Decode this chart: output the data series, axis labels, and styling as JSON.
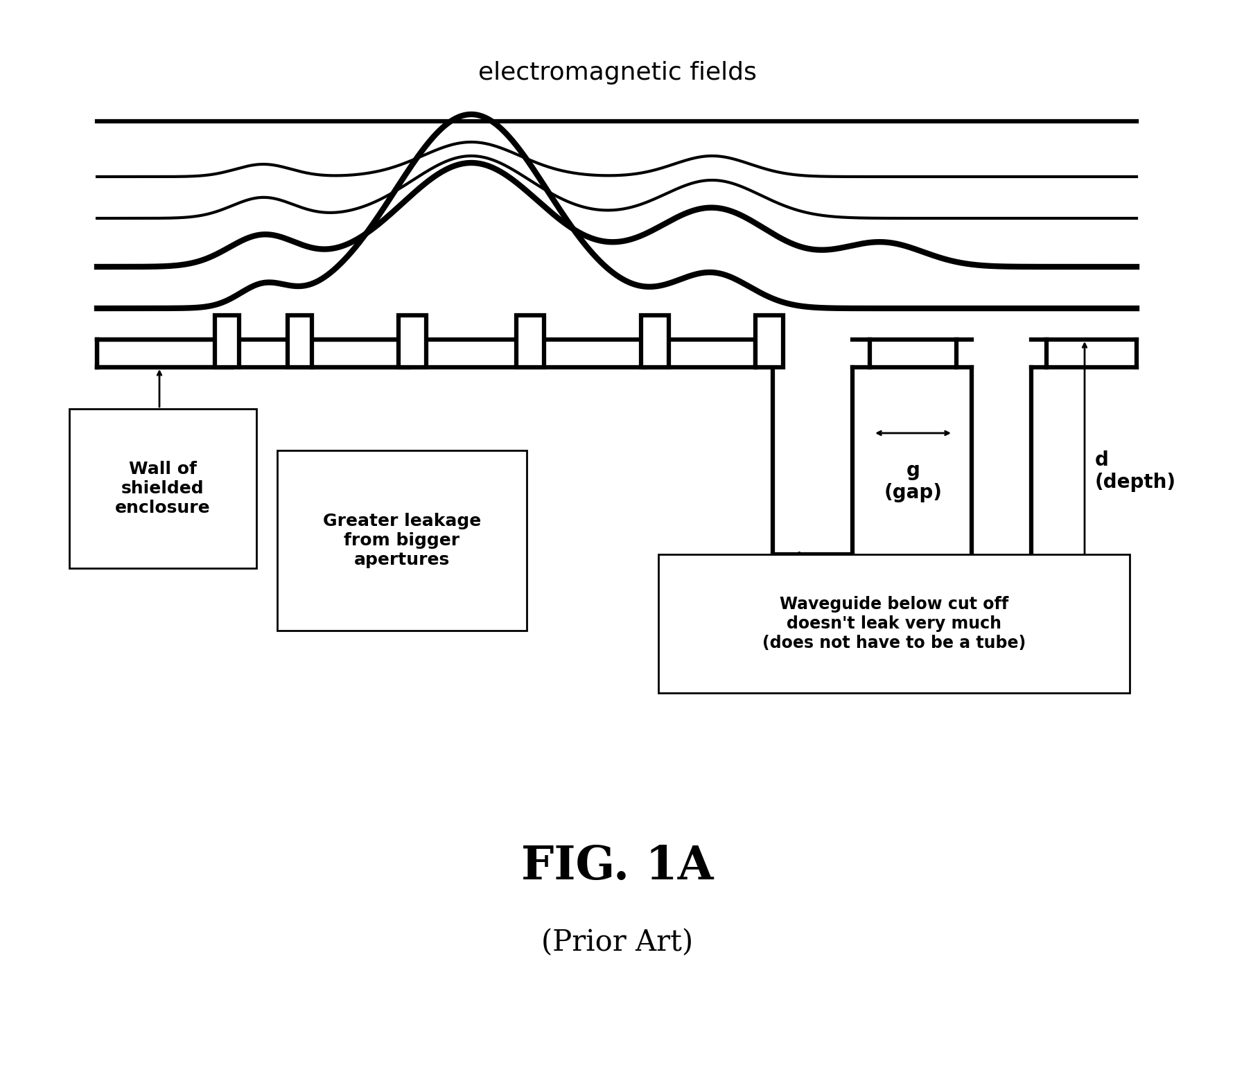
{
  "title": "electromagnetic fields",
  "fig_label": "FIG. 1A",
  "fig_sublabel": "(Prior Art)",
  "bg_color": "#ffffff",
  "line_color": "#000000",
  "label_wall": "Wall of\nshielded\nenclosure",
  "label_leakage": "Greater leakage\nfrom bigger\napertures",
  "label_waveguide": "Waveguide below cut off\ndoesn't leak very much\n(does not have to be a tube)",
  "label_gap": "g\n(gap)",
  "label_depth": "d\n(depth)"
}
